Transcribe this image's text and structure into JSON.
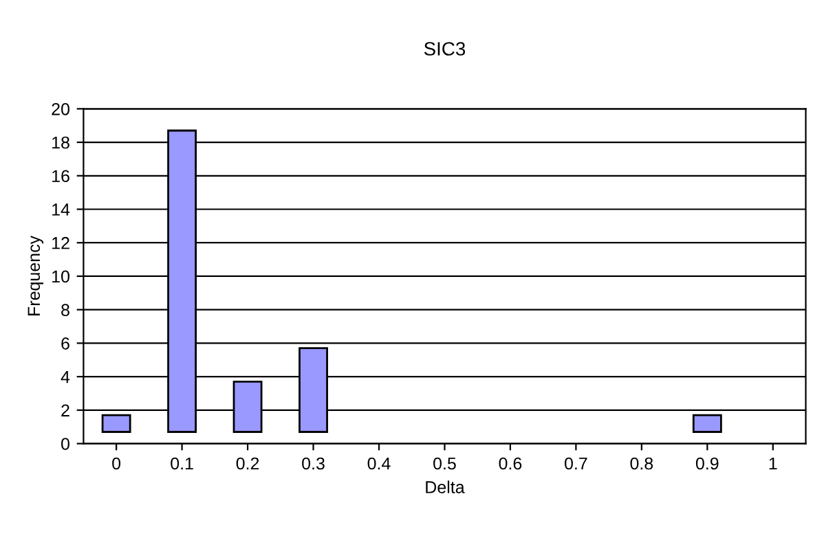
{
  "chart_data": {
    "type": "bar",
    "title": "SIC3",
    "xlabel": "Delta",
    "ylabel": "Frequency",
    "categories": [
      "0",
      "0.1",
      "0.2",
      "0.3",
      "0.4",
      "0.5",
      "0.6",
      "0.7",
      "0.8",
      "0.9",
      "1"
    ],
    "values": [
      1,
      18,
      3,
      5,
      null,
      null,
      null,
      null,
      null,
      1,
      null
    ],
    "base": [
      0.7,
      0.7,
      0.7,
      0.7,
      null,
      null,
      null,
      null,
      null,
      0.7,
      null
    ],
    "color": "#9999ff",
    "ylim": [
      0,
      20
    ],
    "yticks": [
      0,
      2,
      4,
      6,
      8,
      10,
      12,
      14,
      16,
      18,
      20
    ],
    "grid": "y",
    "legend": false
  }
}
